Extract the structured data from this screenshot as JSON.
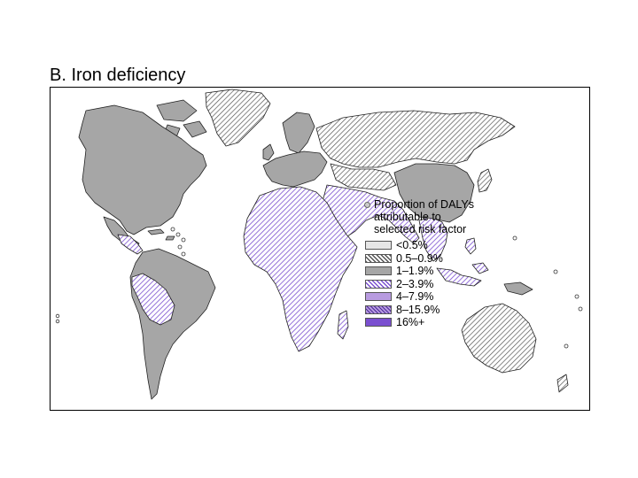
{
  "title": "B. Iron deficiency",
  "legend": {
    "title_lines": [
      "Proportion of DALYs",
      "attributable to",
      "selected risk factor"
    ],
    "items": [
      {
        "label": "<0.5%",
        "color": "#e6e6e6",
        "pattern": "solid"
      },
      {
        "label": "0.5–0.9%",
        "color": "#a6a6a6",
        "pattern": "hatch-gray"
      },
      {
        "label": "1–1.9%",
        "color": "#a6a6a6",
        "pattern": "solid"
      },
      {
        "label": "2–3.9%",
        "color": "#b89be0",
        "pattern": "hatch-purple"
      },
      {
        "label": "4–7.9%",
        "color": "#b89be0",
        "pattern": "solid"
      },
      {
        "label": "8–15.9%",
        "color": "#8a5ad6",
        "pattern": "cross-purple"
      },
      {
        "label": "16%+",
        "color": "#7a4fd0",
        "pattern": "solid"
      }
    ]
  },
  "colors": {
    "gray": "#a6a6a6",
    "purple": "#b89be0",
    "outline": "#222222"
  }
}
